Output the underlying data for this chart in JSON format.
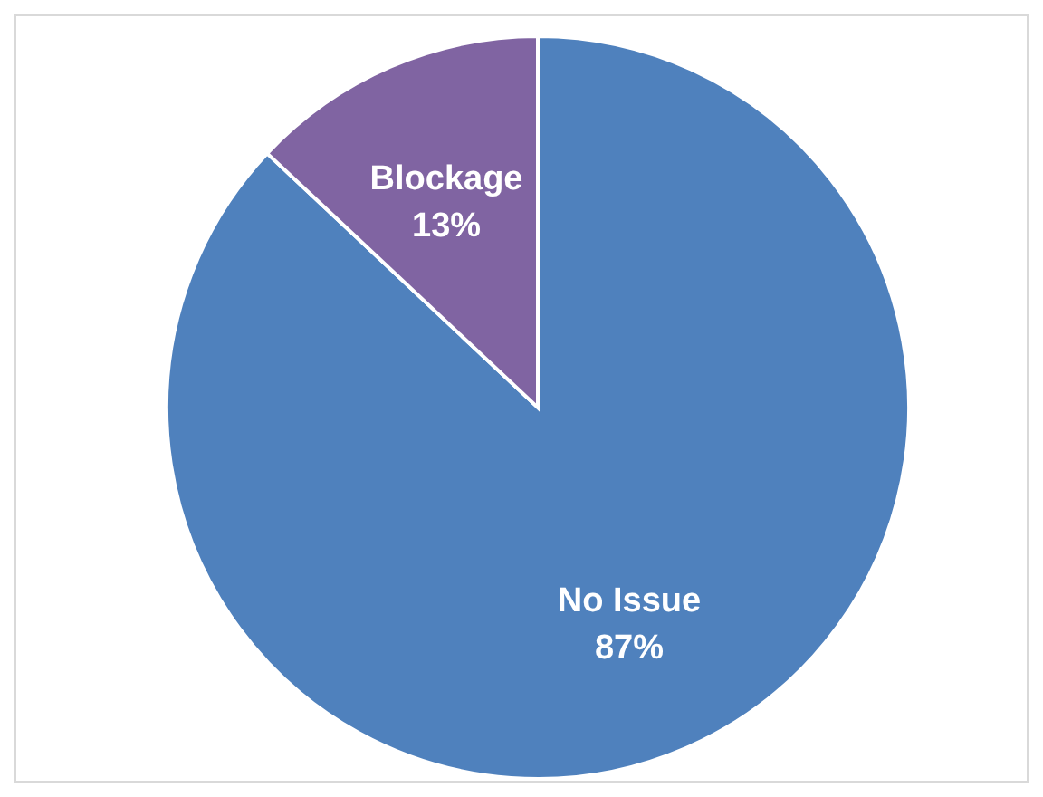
{
  "chart_data": {
    "type": "pie",
    "categories": [
      "No Issue",
      "Blockage"
    ],
    "values": [
      87,
      13
    ],
    "colors": [
      "#4f81bd",
      "#8064a2"
    ],
    "value_labels": [
      "87%",
      "13%"
    ]
  }
}
